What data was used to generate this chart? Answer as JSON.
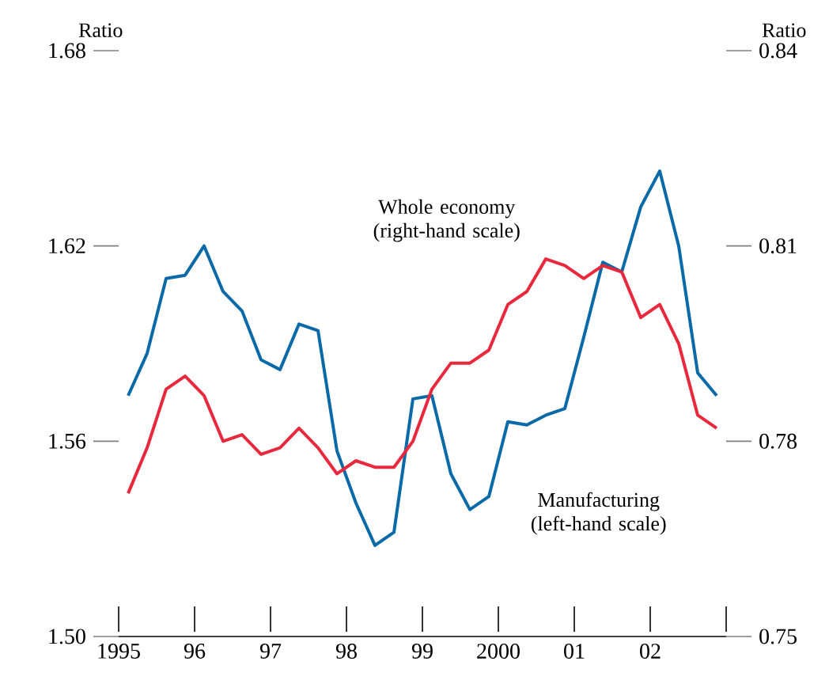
{
  "chart_data": {
    "type": "line",
    "ylabel": "Ratio",
    "y2label": "Ratio",
    "marker": "none",
    "line_style": "solid",
    "x": [
      1995.125,
      1995.375,
      1995.625,
      1995.875,
      1996.125,
      1996.375,
      1996.625,
      1996.875,
      1997.125,
      1997.375,
      1997.625,
      1997.875,
      1998.125,
      1998.375,
      1998.625,
      1998.875,
      1999.125,
      1999.375,
      1999.625,
      1999.875,
      2000.125,
      2000.375,
      2000.625,
      2000.875,
      2001.125,
      2001.375,
      2001.625,
      2001.875,
      2002.125,
      2002.375,
      2002.625,
      2002.875
    ],
    "series": [
      {
        "color": "#0a6aa8",
        "values": [
          1.574,
          1.587,
          1.61,
          1.611,
          1.62,
          1.606,
          1.6,
          1.585,
          1.582,
          1.596,
          1.594,
          1.557,
          1.541,
          1.528,
          1.532,
          1.573,
          1.574,
          1.55,
          1.539,
          1.543,
          1.566,
          1.565,
          1.568,
          1.57,
          1.592,
          1.615,
          1.612,
          1.632,
          1.643,
          1.62,
          1.581,
          1.574
        ]
      },
      {
        "color": "#e8283c",
        "axis": "y2",
        "values": [
          0.772,
          0.779,
          0.788,
          0.79,
          0.787,
          0.78,
          0.781,
          0.778,
          0.779,
          0.782,
          0.779,
          0.775,
          0.777,
          0.776,
          0.776,
          0.78,
          0.788,
          0.792,
          0.792,
          0.794,
          0.801,
          0.803,
          0.808,
          0.807,
          0.805,
          0.807,
          0.806,
          0.799,
          0.801,
          0.795,
          0.784,
          0.782
        ]
      }
    ],
    "xlim": [
      1995,
      2003
    ],
    "xticks": [
      1995,
      {
        "value": 1996,
        "label": "96"
      },
      {
        "value": 1997,
        "label": "97"
      },
      {
        "value": 1998,
        "label": "98"
      },
      {
        "value": 1999,
        "label": "99"
      },
      2000,
      {
        "value": 2001,
        "label": "01"
      },
      {
        "value": 2002,
        "label": "02"
      },
      {
        "value": 2003,
        "label": null
      }
    ],
    "ylim": [
      1.5,
      1.68
    ],
    "yticks": [
      {
        "value": 1.5,
        "label": "1.50"
      },
      1.56,
      1.62,
      1.68
    ],
    "y2lim": [
      0.75,
      0.84
    ],
    "y2ticks": [
      0.75,
      0.78,
      0.81,
      0.84
    ],
    "annotations": [
      "Whole economy (right-hand scale)",
      "Manufacturing (left-hand scale)"
    ]
  }
}
